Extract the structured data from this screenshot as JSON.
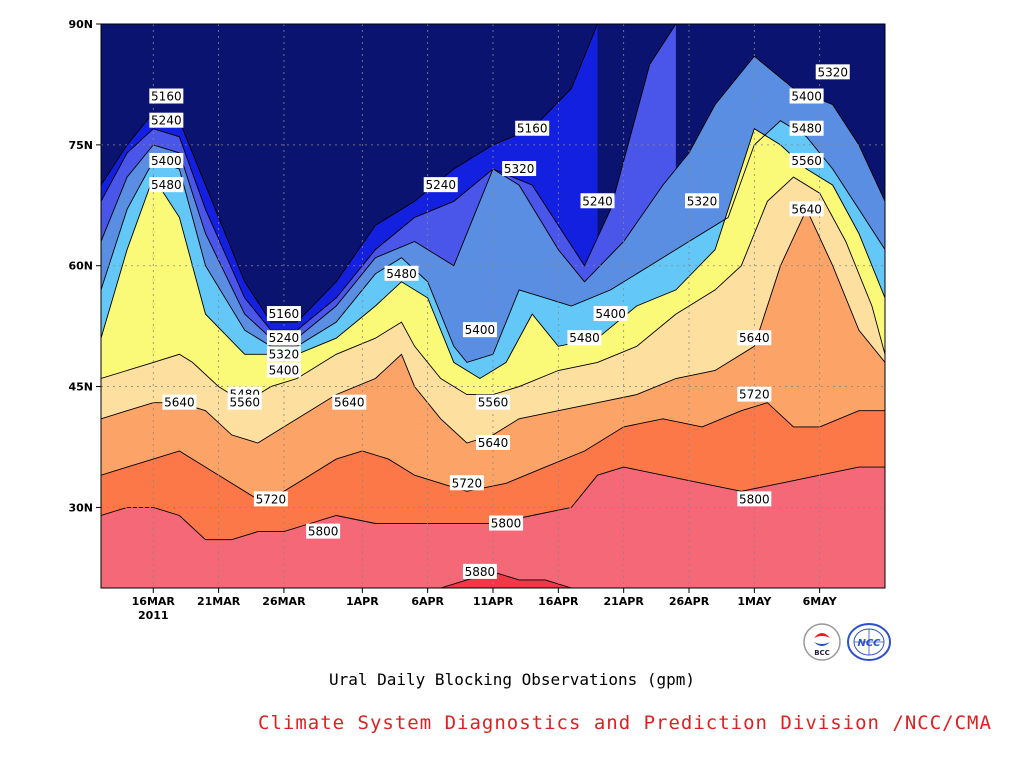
{
  "chart_data": {
    "type": "filled-contour",
    "title": "Ural Daily Blocking Observations (gpm)",
    "credit": "Climate System Diagnostics and Prediction Division /NCC/CMA",
    "x_ticks": [
      {
        "label": "16MAR",
        "day": 16
      },
      {
        "label": "21MAR",
        "day": 21
      },
      {
        "label": "26MAR",
        "day": 26
      },
      {
        "label": "1APR",
        "day": 32
      },
      {
        "label": "6APR",
        "day": 37
      },
      {
        "label": "11APR",
        "day": 42
      },
      {
        "label": "16APR",
        "day": 47
      },
      {
        "label": "21APR",
        "day": 52
      },
      {
        "label": "26APR",
        "day": 57
      },
      {
        "label": "1MAY",
        "day": 62
      },
      {
        "label": "6MAY",
        "day": 67
      }
    ],
    "x_year_label": "2011",
    "y_ticks": [
      {
        "label": "30N",
        "lat": 30
      },
      {
        "label": "45N",
        "lat": 45
      },
      {
        "label": "60N",
        "lat": 60
      },
      {
        "label": "75N",
        "lat": 75
      },
      {
        "label": "90N",
        "lat": 90
      }
    ],
    "xlim_days": [
      12,
      72
    ],
    "ylim_lat": [
      20,
      90
    ],
    "grid": true,
    "levels": [
      5160,
      5240,
      5320,
      5400,
      5480,
      5560,
      5640,
      5720,
      5800,
      5880
    ],
    "fill_colors": [
      "#0a1470",
      "#1420e0",
      "#4a55ea",
      "#5a8ee2",
      "#63c8f8",
      "#fafa78",
      "#fde0a0",
      "#fca468",
      "#fc7848",
      "#f46878",
      "#f03848"
    ],
    "contour_lines": [
      {
        "level": 5160,
        "points": [
          [
            12,
            70
          ],
          [
            14,
            75
          ],
          [
            16,
            79
          ],
          [
            18,
            78
          ],
          [
            20,
            70
          ],
          [
            23,
            58
          ],
          [
            25,
            53
          ],
          [
            27,
            53
          ],
          [
            30,
            58
          ],
          [
            33,
            65
          ],
          [
            36,
            68
          ],
          [
            39,
            72
          ],
          [
            42,
            75
          ],
          [
            45,
            77
          ],
          [
            48,
            82
          ],
          [
            50,
            90
          ]
        ]
      },
      {
        "level": 5240,
        "points": [
          [
            12,
            68
          ],
          [
            14,
            74
          ],
          [
            16,
            77
          ],
          [
            18,
            76
          ],
          [
            20,
            67
          ],
          [
            23,
            56
          ],
          [
            25,
            52
          ],
          [
            27,
            52
          ],
          [
            30,
            56
          ],
          [
            33,
            62
          ],
          [
            36,
            66
          ],
          [
            39,
            68
          ],
          [
            42,
            72
          ],
          [
            45,
            70
          ],
          [
            47,
            65
          ],
          [
            49,
            60
          ],
          [
            51,
            67
          ],
          [
            54,
            85
          ],
          [
            56,
            90
          ]
        ]
      },
      {
        "level": 5320,
        "points": [
          [
            12,
            63
          ],
          [
            14,
            71
          ],
          [
            16,
            75
          ],
          [
            18,
            74
          ],
          [
            20,
            64
          ],
          [
            23,
            54
          ],
          [
            25,
            51
          ],
          [
            27,
            51
          ],
          [
            30,
            55
          ],
          [
            33,
            61
          ],
          [
            36,
            63
          ],
          [
            39,
            60
          ],
          [
            41,
            68
          ],
          [
            42,
            72
          ],
          [
            44,
            70
          ],
          [
            47,
            62
          ],
          [
            49,
            58
          ],
          [
            52,
            63
          ],
          [
            55,
            70
          ],
          [
            57,
            74
          ],
          [
            59,
            80
          ],
          [
            62,
            86
          ],
          [
            65,
            82
          ],
          [
            68,
            80
          ],
          [
            70,
            75
          ],
          [
            72,
            68
          ]
        ]
      },
      {
        "level": 5400,
        "points": [
          [
            12,
            57
          ],
          [
            14,
            67
          ],
          [
            16,
            73
          ],
          [
            18,
            72
          ],
          [
            20,
            60
          ],
          [
            23,
            52
          ],
          [
            25,
            50
          ],
          [
            27,
            50
          ],
          [
            30,
            53
          ],
          [
            33,
            59
          ],
          [
            35,
            61
          ],
          [
            37,
            58
          ],
          [
            39,
            50
          ],
          [
            40,
            48
          ],
          [
            42,
            49
          ],
          [
            44,
            57
          ],
          [
            46,
            56
          ],
          [
            48,
            55
          ],
          [
            51,
            57
          ],
          [
            54,
            60
          ],
          [
            57,
            63
          ],
          [
            60,
            66
          ],
          [
            62,
            75
          ],
          [
            64,
            78
          ],
          [
            66,
            76
          ],
          [
            68,
            72
          ],
          [
            70,
            67
          ],
          [
            72,
            62
          ]
        ]
      },
      {
        "level": 5480,
        "points": [
          [
            12,
            51
          ],
          [
            14,
            62
          ],
          [
            16,
            71
          ],
          [
            18,
            66
          ],
          [
            20,
            54
          ],
          [
            23,
            49
          ],
          [
            25,
            49
          ],
          [
            27,
            49
          ],
          [
            30,
            51
          ],
          [
            33,
            55
          ],
          [
            35,
            58
          ],
          [
            37,
            56
          ],
          [
            39,
            48
          ],
          [
            41,
            46
          ],
          [
            43,
            48
          ],
          [
            45,
            54
          ],
          [
            47,
            50
          ],
          [
            50,
            51
          ],
          [
            53,
            55
          ],
          [
            56,
            57
          ],
          [
            59,
            62
          ],
          [
            62,
            77
          ],
          [
            64,
            75
          ],
          [
            66,
            72
          ],
          [
            68,
            70
          ],
          [
            70,
            64
          ],
          [
            72,
            56
          ]
        ]
      },
      {
        "level": 5560,
        "points": [
          [
            12,
            46
          ],
          [
            14,
            47
          ],
          [
            16,
            48
          ],
          [
            18,
            49
          ],
          [
            19,
            48
          ],
          [
            21,
            45
          ],
          [
            23,
            43
          ],
          [
            25,
            45
          ],
          [
            27,
            46
          ],
          [
            30,
            49
          ],
          [
            33,
            51
          ],
          [
            35,
            53
          ],
          [
            36,
            50
          ],
          [
            38,
            46
          ],
          [
            40,
            44
          ],
          [
            42,
            44
          ],
          [
            44,
            45
          ],
          [
            47,
            47
          ],
          [
            50,
            48
          ],
          [
            53,
            50
          ],
          [
            56,
            54
          ],
          [
            59,
            57
          ],
          [
            61,
            60
          ],
          [
            63,
            68
          ],
          [
            65,
            71
          ],
          [
            67,
            69
          ],
          [
            69,
            63
          ],
          [
            71,
            55
          ],
          [
            72,
            49
          ]
        ]
      },
      {
        "level": 5640,
        "points": [
          [
            12,
            41
          ],
          [
            14,
            42
          ],
          [
            16,
            43
          ],
          [
            18,
            43
          ],
          [
            20,
            42
          ],
          [
            22,
            39
          ],
          [
            24,
            38
          ],
          [
            26,
            40
          ],
          [
            28,
            42
          ],
          [
            30,
            44
          ],
          [
            33,
            46
          ],
          [
            35,
            49
          ],
          [
            36,
            45
          ],
          [
            38,
            41
          ],
          [
            40,
            38
          ],
          [
            42,
            39
          ],
          [
            44,
            41
          ],
          [
            47,
            42
          ],
          [
            50,
            43
          ],
          [
            53,
            44
          ],
          [
            56,
            46
          ],
          [
            59,
            47
          ],
          [
            62,
            50
          ],
          [
            64,
            60
          ],
          [
            66,
            67
          ],
          [
            68,
            60
          ],
          [
            70,
            52
          ],
          [
            72,
            48
          ]
        ]
      },
      {
        "level": 5720,
        "points": [
          [
            12,
            34
          ],
          [
            14,
            35
          ],
          [
            16,
            36
          ],
          [
            18,
            37
          ],
          [
            20,
            35
          ],
          [
            22,
            33
          ],
          [
            24,
            31
          ],
          [
            26,
            32
          ],
          [
            28,
            34
          ],
          [
            30,
            36
          ],
          [
            32,
            37
          ],
          [
            34,
            36
          ],
          [
            36,
            34
          ],
          [
            38,
            33
          ],
          [
            40,
            32
          ],
          [
            43,
            33
          ],
          [
            46,
            35
          ],
          [
            49,
            37
          ],
          [
            52,
            40
          ],
          [
            55,
            41
          ],
          [
            58,
            40
          ],
          [
            61,
            42
          ],
          [
            63,
            43
          ],
          [
            65,
            40
          ],
          [
            67,
            40
          ],
          [
            70,
            42
          ],
          [
            72,
            42
          ]
        ]
      },
      {
        "level": 5800,
        "points": [
          [
            12,
            29
          ],
          [
            14,
            30
          ],
          [
            16,
            30
          ],
          [
            18,
            29
          ],
          [
            20,
            26
          ],
          [
            22,
            26
          ],
          [
            24,
            27
          ],
          [
            26,
            27
          ],
          [
            28,
            28
          ],
          [
            30,
            29
          ],
          [
            33,
            28
          ],
          [
            36,
            28
          ],
          [
            39,
            28
          ],
          [
            42,
            28
          ],
          [
            45,
            29
          ],
          [
            48,
            30
          ],
          [
            50,
            34
          ],
          [
            52,
            35
          ],
          [
            55,
            34
          ],
          [
            58,
            33
          ],
          [
            61,
            32
          ],
          [
            64,
            33
          ],
          [
            67,
            34
          ],
          [
            70,
            35
          ],
          [
            72,
            35
          ]
        ]
      },
      {
        "level": 5880,
        "points": [
          [
            38,
            20
          ],
          [
            40,
            21
          ],
          [
            42,
            22
          ],
          [
            44,
            21
          ],
          [
            46,
            21
          ],
          [
            48,
            20
          ]
        ]
      }
    ],
    "contour_labels": [
      {
        "text": "5160",
        "day": 17,
        "lat": 81
      },
      {
        "text": "5240",
        "day": 17,
        "lat": 78
      },
      {
        "text": "5400",
        "day": 17,
        "lat": 73
      },
      {
        "text": "5480",
        "day": 17,
        "lat": 70
      },
      {
        "text": "5640",
        "day": 18,
        "lat": 43
      },
      {
        "text": "5160",
        "day": 26,
        "lat": 54
      },
      {
        "text": "5240",
        "day": 26,
        "lat": 51
      },
      {
        "text": "5320",
        "day": 26,
        "lat": 49
      },
      {
        "text": "5400",
        "day": 26,
        "lat": 47
      },
      {
        "text": "5480",
        "day": 23,
        "lat": 44
      },
      {
        "text": "5560",
        "day": 23,
        "lat": 43
      },
      {
        "text": "5640",
        "day": 31,
        "lat": 43
      },
      {
        "text": "5720",
        "day": 25,
        "lat": 31
      },
      {
        "text": "5800",
        "day": 29,
        "lat": 27
      },
      {
        "text": "5480",
        "day": 35,
        "lat": 59
      },
      {
        "text": "5240",
        "day": 38,
        "lat": 70
      },
      {
        "text": "5160",
        "day": 45,
        "lat": 77
      },
      {
        "text": "5320",
        "day": 44,
        "lat": 72
      },
      {
        "text": "5400",
        "day": 41,
        "lat": 52
      },
      {
        "text": "5560",
        "day": 42,
        "lat": 43
      },
      {
        "text": "5640",
        "day": 42,
        "lat": 38
      },
      {
        "text": "5720",
        "day": 40,
        "lat": 33
      },
      {
        "text": "5800",
        "day": 43,
        "lat": 28
      },
      {
        "text": "5880",
        "day": 41,
        "lat": 22
      },
      {
        "text": "5240",
        "day": 50,
        "lat": 68
      },
      {
        "text": "5400",
        "day": 51,
        "lat": 54
      },
      {
        "text": "5480",
        "day": 49,
        "lat": 51
      },
      {
        "text": "5320",
        "day": 58,
        "lat": 68
      },
      {
        "text": "5640",
        "day": 62,
        "lat": 51
      },
      {
        "text": "5720",
        "day": 62,
        "lat": 44
      },
      {
        "text": "5800",
        "day": 62,
        "lat": 31
      },
      {
        "text": "5320",
        "day": 68,
        "lat": 84
      },
      {
        "text": "5400",
        "day": 66,
        "lat": 81
      },
      {
        "text": "5480",
        "day": 66,
        "lat": 77
      },
      {
        "text": "5560",
        "day": 66,
        "lat": 73
      },
      {
        "text": "5640",
        "day": 66,
        "lat": 67
      }
    ]
  },
  "logos": {
    "left": {
      "name": "bcc-logo",
      "text": "BCC"
    },
    "right": {
      "name": "ncc-logo",
      "text": "NCC"
    }
  }
}
